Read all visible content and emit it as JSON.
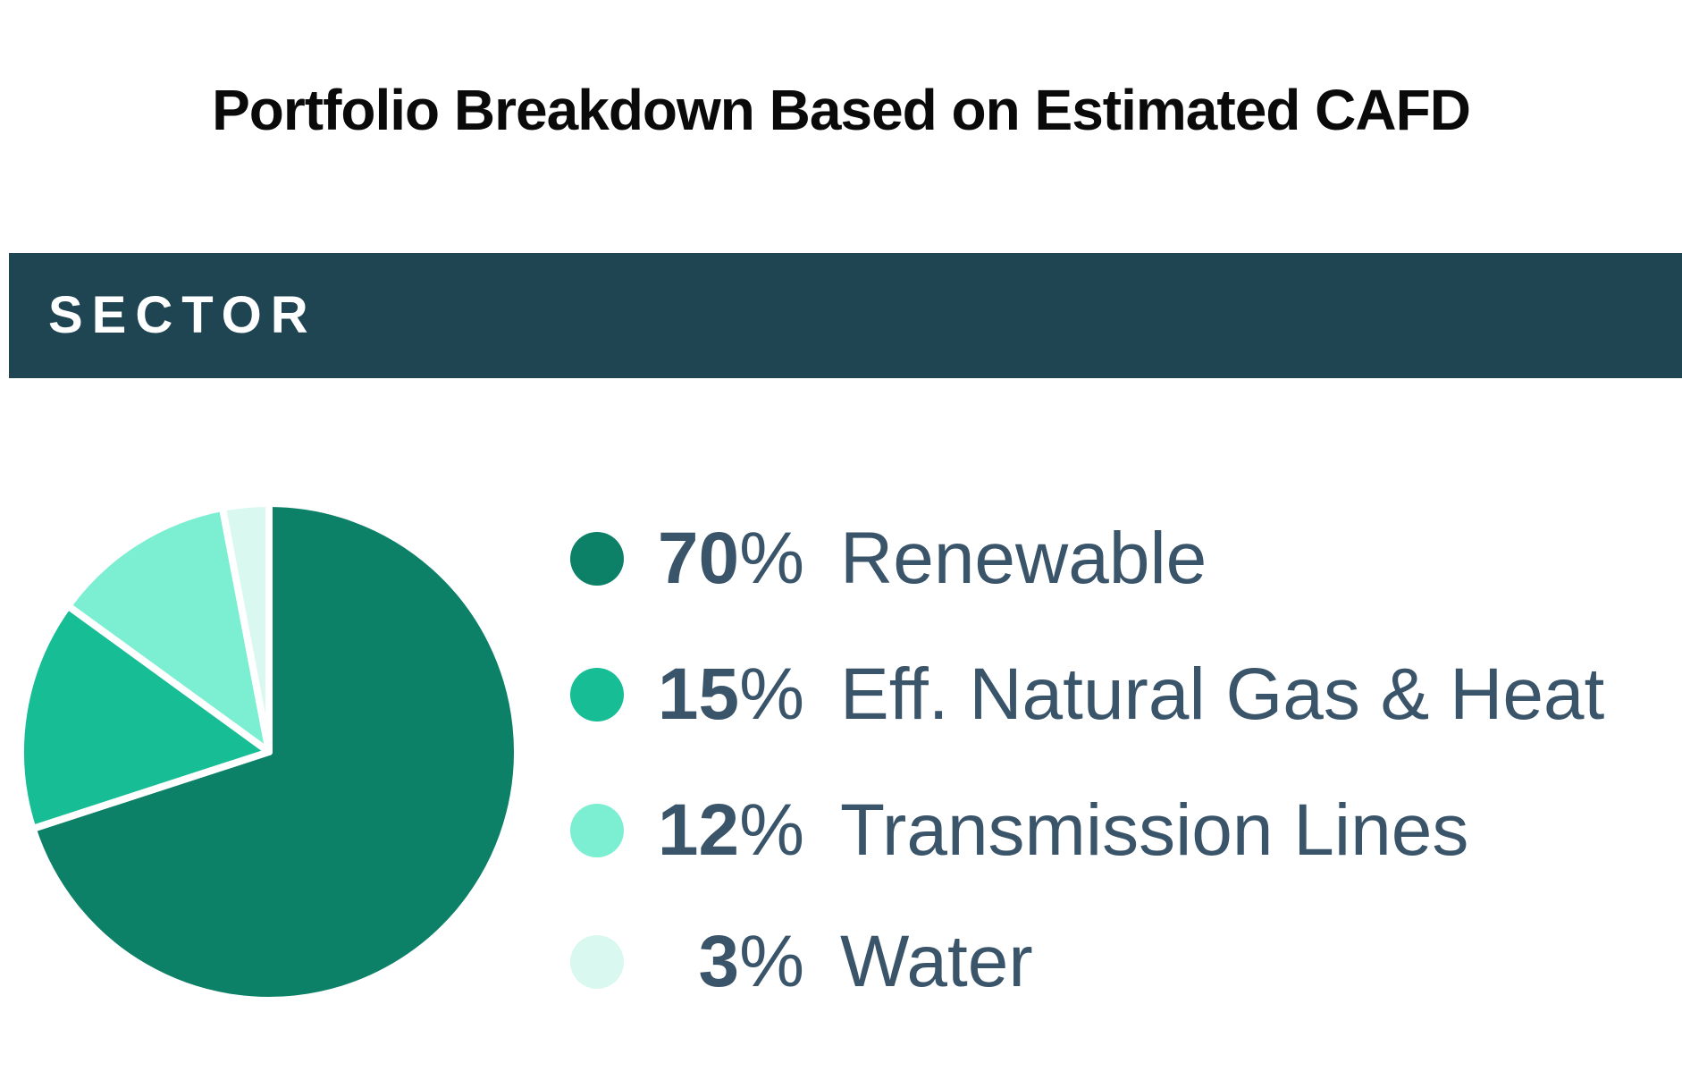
{
  "title": "Portfolio Breakdown Based on Estimated CAFD",
  "section_header": {
    "label": "SECTOR"
  },
  "colors": {
    "header_bar_bg": "#1F4452",
    "header_bar_text": "#FFFFFF",
    "title_text": "#0A0A0A",
    "legend_text": "#3A546A",
    "slice_border": "#FFFFFF"
  },
  "chart_data": {
    "type": "pie",
    "title": "Portfolio Breakdown Based on Estimated CAFD",
    "section_label": "SECTOR",
    "start_angle_deg": 0,
    "direction": "clockwise",
    "legend_position": "right",
    "grid": false,
    "percent_suffix": "%",
    "slices": [
      {
        "label": "Renewable",
        "value_pct": 70,
        "color": "#0D8068"
      },
      {
        "label": "Eff. Natural Gas & Heat",
        "value_pct": 15,
        "color": "#16BD95"
      },
      {
        "label": "Transmission Lines",
        "value_pct": 12,
        "color": "#7CEFD2"
      },
      {
        "label": "Water",
        "value_pct": 3,
        "color": "#D9F8EF"
      }
    ]
  }
}
